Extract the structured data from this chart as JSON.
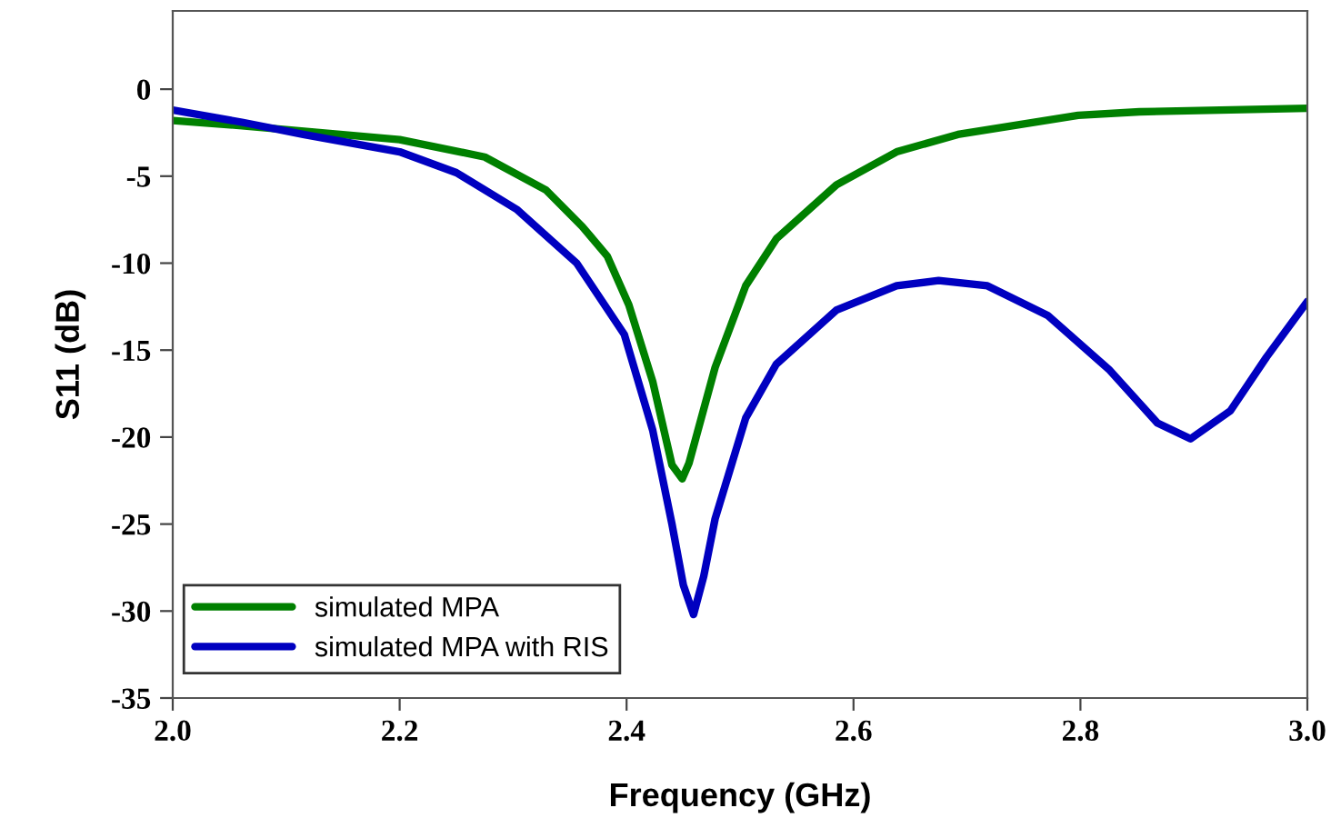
{
  "chart_data": {
    "type": "line",
    "xlabel": "Frequency (GHz)",
    "ylabel": "S11 (dB)",
    "xlim": [
      2.0,
      3.0
    ],
    "xticks": [
      {
        "value": 2.0,
        "label": "2.0"
      },
      2.2,
      2.4,
      2.6,
      2.8,
      {
        "value": 3.0,
        "label": "3.0"
      }
    ],
    "ylim": [
      -35,
      4.5
    ],
    "yticks": [
      -35,
      -30,
      -25,
      -20,
      -15,
      -10,
      -5,
      0
    ],
    "grid": false,
    "legend": "bottom left",
    "marker": "none",
    "line_style": "solid",
    "series": [
      {
        "name": "simulated MPA",
        "color": "#008000",
        "x": [
          2.0,
          2.061,
          2.2,
          2.275,
          2.329,
          2.361,
          2.383,
          2.402,
          2.423,
          2.44,
          2.449,
          2.455,
          2.478,
          2.505,
          2.532,
          2.585,
          2.638,
          2.692,
          2.798,
          2.852,
          3.0
        ],
        "values": [
          -1.8,
          -2.1,
          -2.9,
          -3.9,
          -5.8,
          -7.9,
          -9.6,
          -12.4,
          -16.8,
          -21.6,
          -22.4,
          -21.5,
          -16,
          -11.3,
          -8.6,
          -5.5,
          -3.6,
          -2.6,
          -1.5,
          -1.3,
          -1.1
        ]
      },
      {
        "name": "simulated MPA with RIS",
        "color": "#0000c0",
        "x": [
          2.0,
          2.061,
          2.115,
          2.2,
          2.25,
          2.303,
          2.356,
          2.398,
          2.423,
          2.44,
          2.45,
          2.459,
          2.468,
          2.478,
          2.505,
          2.532,
          2.585,
          2.638,
          2.675,
          2.718,
          2.771,
          2.825,
          2.868,
          2.897,
          2.932,
          2.964,
          3.0
        ],
        "values": [
          -1.2,
          -1.9,
          -2.6,
          -3.6,
          -4.8,
          -6.9,
          -10,
          -14.1,
          -19.6,
          -25,
          -28.5,
          -30.2,
          -28,
          -24.7,
          -18.9,
          -15.8,
          -12.7,
          -11.3,
          -11,
          -11.3,
          -13,
          -16.1,
          -19.2,
          -20.1,
          -18.5,
          -15.4,
          -12.2
        ]
      }
    ]
  }
}
